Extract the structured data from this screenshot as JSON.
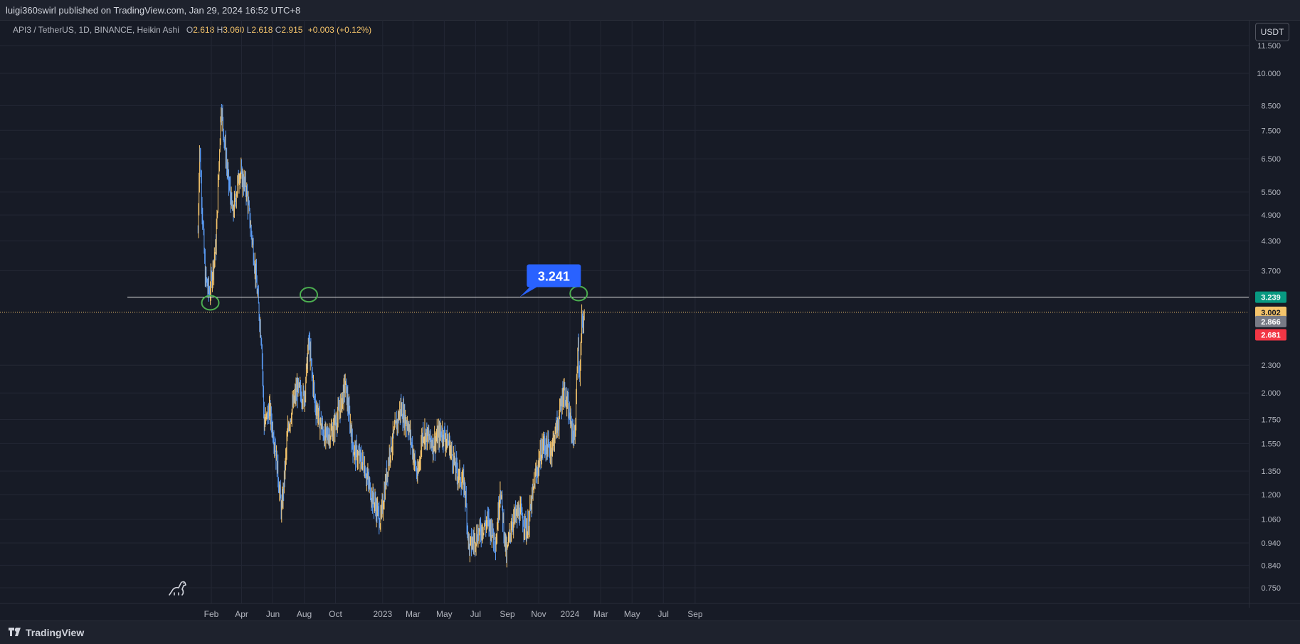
{
  "header": {
    "publisher": "luigi360swirl published on TradingView.com, Jan 29, 2024 16:52 UTC+8"
  },
  "legend": {
    "symbol": "API3 / TetherUS, 1D, BINANCE, Heikin Ashi",
    "o_label": "O",
    "o_value": "2.618",
    "h_label": "H",
    "h_value": "3.060",
    "l_label": "L",
    "l_value": "2.618",
    "c_label": "C",
    "c_value": "2.915",
    "change": "+0.003 (+0.12%)"
  },
  "currency_button": "USDT",
  "footer": {
    "brand": "TradingView",
    "logo_icon": "tradingview-logo-icon"
  },
  "colors": {
    "background": "#171b26",
    "up_candle": "#f5c46b",
    "down_candle": "#5b9cf6",
    "hline": "#e8e8e8",
    "marker_circle": "#4caf50",
    "callout_bg": "#2962ff",
    "price_green": "#089981",
    "price_orange": "#f5c46b",
    "price_gray": "#787b86",
    "price_red": "#f23645"
  },
  "chart_data": {
    "type": "candlestick",
    "scale": "log",
    "y_ticks": [
      "11.500",
      "10.000",
      "8.500",
      "7.500",
      "6.500",
      "5.500",
      "4.900",
      "4.300",
      "3.700",
      "3.239",
      "3.002",
      "2.866",
      "2.681",
      "2.300",
      "2.000",
      "1.750",
      "1.550",
      "1.350",
      "1.200",
      "1.060",
      "0.940",
      "0.840",
      "0.750"
    ],
    "y_tick_values": [
      11.5,
      10,
      8.5,
      7.5,
      6.5,
      5.5,
      4.9,
      4.3,
      3.7,
      2.3,
      2.0,
      1.75,
      1.55,
      1.35,
      1.2,
      1.06,
      0.94,
      0.84,
      0.75
    ],
    "y_tick_labels": [
      "11.500",
      "10.000",
      "8.500",
      "7.500",
      "6.500",
      "5.500",
      "4.900",
      "4.300",
      "3.700",
      "2.300",
      "2.000",
      "1.750",
      "1.550",
      "1.350",
      "1.200",
      "1.060",
      "0.940",
      "0.840",
      "0.750"
    ],
    "x_ticks": [
      {
        "label": "Feb",
        "date": "2022-02-01"
      },
      {
        "label": "Apr",
        "date": "2022-04-01"
      },
      {
        "label": "Jun",
        "date": "2022-06-01"
      },
      {
        "label": "Aug",
        "date": "2022-08-01"
      },
      {
        "label": "Oct",
        "date": "2022-10-01"
      },
      {
        "label": "2023",
        "date": "2023-01-01"
      },
      {
        "label": "Mar",
        "date": "2023-03-01"
      },
      {
        "label": "May",
        "date": "2023-05-01"
      },
      {
        "label": "Jul",
        "date": "2023-07-01"
      },
      {
        "label": "Sep",
        "date": "2023-09-01"
      },
      {
        "label": "Nov",
        "date": "2023-11-01"
      },
      {
        "label": "2024",
        "date": "2024-01-01"
      },
      {
        "label": "Mar",
        "date": "2024-03-01"
      },
      {
        "label": "May",
        "date": "2024-05-01"
      },
      {
        "label": "Jul",
        "date": "2024-07-01"
      },
      {
        "label": "Sep",
        "date": "2024-09-01"
      }
    ],
    "price_anchors": [
      {
        "date": "2022-01-06",
        "price": 4.5
      },
      {
        "date": "2022-01-09",
        "price": 6.9
      },
      {
        "date": "2022-01-20",
        "price": 3.6
      },
      {
        "date": "2022-01-28",
        "price": 3.3
      },
      {
        "date": "2022-02-10",
        "price": 4.2
      },
      {
        "date": "2022-02-20",
        "price": 8.5
      },
      {
        "date": "2022-03-05",
        "price": 6.0
      },
      {
        "date": "2022-03-15",
        "price": 4.9
      },
      {
        "date": "2022-03-28",
        "price": 6.1
      },
      {
        "date": "2022-04-10",
        "price": 5.6
      },
      {
        "date": "2022-04-25",
        "price": 4.0
      },
      {
        "date": "2022-05-10",
        "price": 2.6
      },
      {
        "date": "2022-05-15",
        "price": 1.7
      },
      {
        "date": "2022-05-25",
        "price": 1.85
      },
      {
        "date": "2022-06-05",
        "price": 1.55
      },
      {
        "date": "2022-06-18",
        "price": 1.1
      },
      {
        "date": "2022-07-01",
        "price": 1.7
      },
      {
        "date": "2022-07-18",
        "price": 2.05
      },
      {
        "date": "2022-08-01",
        "price": 1.95
      },
      {
        "date": "2022-08-10",
        "price": 2.6
      },
      {
        "date": "2022-08-22",
        "price": 1.9
      },
      {
        "date": "2022-09-10",
        "price": 1.6
      },
      {
        "date": "2022-09-25",
        "price": 1.65
      },
      {
        "date": "2022-10-10",
        "price": 1.85
      },
      {
        "date": "2022-10-20",
        "price": 2.1
      },
      {
        "date": "2022-11-05",
        "price": 1.5
      },
      {
        "date": "2022-11-25",
        "price": 1.4
      },
      {
        "date": "2022-12-10",
        "price": 1.2
      },
      {
        "date": "2022-12-28",
        "price": 1.05
      },
      {
        "date": "2023-01-15",
        "price": 1.5
      },
      {
        "date": "2023-02-05",
        "price": 1.85
      },
      {
        "date": "2023-02-20",
        "price": 1.7
      },
      {
        "date": "2023-03-10",
        "price": 1.3
      },
      {
        "date": "2023-03-20",
        "price": 1.65
      },
      {
        "date": "2023-04-10",
        "price": 1.55
      },
      {
        "date": "2023-04-25",
        "price": 1.65
      },
      {
        "date": "2023-05-10",
        "price": 1.55
      },
      {
        "date": "2023-05-25",
        "price": 1.35
      },
      {
        "date": "2023-06-10",
        "price": 1.25
      },
      {
        "date": "2023-06-18",
        "price": 0.92
      },
      {
        "date": "2023-07-10",
        "price": 1.0
      },
      {
        "date": "2023-07-25",
        "price": 1.05
      },
      {
        "date": "2023-08-10",
        "price": 0.95
      },
      {
        "date": "2023-08-18",
        "price": 1.25
      },
      {
        "date": "2023-08-30",
        "price": 0.88
      },
      {
        "date": "2023-09-10",
        "price": 1.05
      },
      {
        "date": "2023-09-25",
        "price": 1.1
      },
      {
        "date": "2023-10-10",
        "price": 1.0
      },
      {
        "date": "2023-10-25",
        "price": 1.3
      },
      {
        "date": "2023-11-10",
        "price": 1.55
      },
      {
        "date": "2023-11-25",
        "price": 1.5
      },
      {
        "date": "2023-12-10",
        "price": 1.75
      },
      {
        "date": "2023-12-20",
        "price": 2.05
      },
      {
        "date": "2023-12-30",
        "price": 1.8
      },
      {
        "date": "2024-01-08",
        "price": 1.6
      },
      {
        "date": "2024-01-12",
        "price": 1.7
      },
      {
        "date": "2024-01-16",
        "price": 2.6
      },
      {
        "date": "2024-01-20",
        "price": 2.1
      },
      {
        "date": "2024-01-24",
        "price": 2.85
      },
      {
        "date": "2024-01-29",
        "price": 2.9
      }
    ],
    "horizontal_line": {
      "price": 3.241,
      "label": "3.241"
    },
    "last_price_line": 3.002,
    "price_labels": [
      {
        "text": "3.239",
        "price": 3.239,
        "color": "#089981",
        "text_color": "#ffffff"
      },
      {
        "text": "3.002",
        "price": 3.002,
        "color": "#f5c46b",
        "text_color": "#131722"
      },
      {
        "text": "2.866",
        "price": 2.866,
        "color": "#787b86",
        "text_color": "#ffffff"
      },
      {
        "text": "2.681",
        "price": 2.681,
        "color": "#f23645",
        "text_color": "#ffffff"
      }
    ],
    "markers": [
      {
        "date": "2022-01-30",
        "price": 3.15
      },
      {
        "date": "2022-08-10",
        "price": 3.28
      },
      {
        "date": "2024-01-18",
        "price": 3.3
      }
    ],
    "callout": {
      "text": "3.241",
      "date": "2023-09-25",
      "price": 3.241
    },
    "icons": [
      "dinosaur-icon"
    ]
  }
}
